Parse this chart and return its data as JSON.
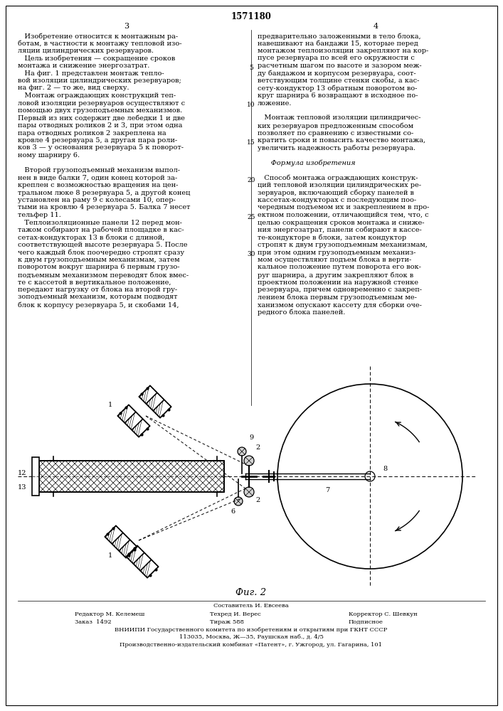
{
  "title": "1571180",
  "page_left": "3",
  "page_right": "4",
  "background": "#ffffff",
  "text_color": "#000000",
  "line_numbers": [
    "5",
    "10",
    "15",
    "20",
    "25",
    "30"
  ],
  "col1_paragraphs": [
    "   Изобретение относится к монтажным работам, в частности к монтажу тепловой изо-ляции цилиндрических резервуаров.\n   Цель изобретения — сокращение сроков монтажа и снижение энергозатрат.\n   На фиг. 1 представлен монтаж тепловой изоляции цилиндрических резервуаров;\nна фиг. 2 — то же, вид сверху.\n   Монтаж ограждающих конструкций тепловой изоляции резервуаров осуществляют с помощью двух грузоподъемных механизмов. Первый из них содержит две лебедки 1 и две пары отводных роликов 2 и 3, при этом одна пара отводных роликов 2 закреплена на кровле 4 резервуара 5, а другая пара роли-ков 3 — у основания резервуара 5 к пово-ротному шарниру 6.\n\n   Второй грузоподъемный механизм выпол-нен в виде балки 7, один конец которой за-креплен с возможностью вращения на цен-тральном люке 8 резервуара 5, а другой конец установлен на раму 9 с колесами 10, опер-тыми на кровлю 4 резервуара 5. Балка 7 несет тельфер 11.\n   Теплоизоляционные панели 12 перед мон-тажом собирают на рабочей площадке в кас-сетах-кондукторах 13 в блоки с длиной, соответствующей высоте резервуара 5. После чего каждый блок поочередно стропят сразу к двум грузоподъемным механизмам, затем поворотом вокруг шарнира 6 первым грузо-подъемным механизмом переводят блок вмес-те с кассетой в вертикальное положение, передают нагрузку от блока на второй гру-зоподъемный механизм, которым подводят блок к корпусу резервуара 5, и скобами 14,"
  ],
  "col1_lines": [
    "   Изобретение относится к монтажным ра-",
    "ботам, в частности к монтажу тепловой изо-",
    "ляции цилиндрических резервуаров.",
    "   Цель изобретения — сокращение сроков",
    "монтажа и снижение энергозатрат.",
    "   На фиг. 1 представлен монтаж тепло-",
    "вой изоляции цилиндрических резервуаров;",
    "на фиг. 2 — то же, вид сверху.",
    "   Монтаж ограждающих конструкций теп-",
    "ловой изоляции резервуаров осуществляют с",
    "помощью двух грузоподъемных механизмов.",
    "Первый из них содержит две лебедки 1 и две",
    "пары отводных роликов 2 и 3, при этом одна",
    "пара отводных роликов 2 закреплена на",
    "кровле 4 резервуара 5, а другая пара роли-",
    "ков 3 — у основания резервуара 5 к поворот-",
    "ному шарниру 6.",
    "",
    "   Второй грузоподъемный механизм выпол-",
    "нен в виде балки 7, один конец которой за-",
    "креплен с возможностью вращения на цен-",
    "тральном люке 8 резервуара 5, а другой конец",
    "установлен на раму 9 с колесами 10, опер-",
    "тыми на кровлю 4 резервуара 5. Балка 7 несет",
    "тельфер 11.",
    "   Теплоизоляционные панели 12 перед мон-",
    "тажом собирают на рабочей площадке в кас-",
    "сетах-кондукторах 13 в блоки с длиной,",
    "соответствующей высоте резервуара 5. После",
    "чего каждый блок поочередно стропят сразу",
    "к двум грузоподъемным механизмам, затем",
    "поворотом вокруг шарнира 6 первым грузо-",
    "подъемным механизмом переводят блок вмес-",
    "те с кассетой в вертикальное положение,",
    "передают нагрузку от блока на второй гру-",
    "зоподъемный механизм, которым подводят",
    "блок к корпусу резервуара 5, и скобами 14,"
  ],
  "col2_lines": [
    "предварительно заложенными в тело блока,",
    "навешивают на бандажи 15, которые перед",
    "монтажом теплоизоляции закрепляют на кор-",
    "пусе резервуара по всей его окружности с",
    "расчетным шагом по высоте и зазором меж-",
    "ду бандажом и корпусом резервуара, соот-",
    "ветствующим толщине стенки скобы, а кас-",
    "сету-кондуктор 13 обратным поворотом во-",
    "круг шарнира 6 возвращают в исходное по-",
    "ложение.",
    "",
    "   Монтаж тепловой изоляции цилиндричес-",
    "ких резервуаров предложенным способом",
    "позволяет по сравнению с известными со-",
    "кратить сроки и повысить качество монтажа,",
    "увеличить надежность работы резервуара.",
    "",
    "      Формула изобретения",
    "",
    "   Способ монтажа ограждающих конструк-",
    "ций тепловой изоляции цилиндрических ре-",
    "зервуаров, включающий сборку панелей в",
    "кассетах-кондукторах с последующим поо-",
    "чередным подъемом их и закреплением в про-",
    "ектном положении, отличающийся тем, что, с",
    "целью сокращения сроков монтажа и сниже-",
    "ния энергозатрат, панели собирают в кассе-",
    "те-кондукторе в блоки, затем кондуктор",
    "стропят к двум грузоподъемным механизмам,",
    "при этом одним грузоподъемным механиз-",
    "мом осуществляют подъем блока в верти-",
    "кальное положение путем поворота его вок-",
    "руг шарнира, а другим закрепляют блок в",
    "проектном положении на наружной стенке",
    "резервуара, причем одновременно с закреп-",
    "лением блока первым грузоподъемным ме-",
    "ханизмом опускают кассету для сборки оче-",
    "редного блока панелей."
  ],
  "fig_caption": "Фиг. 2",
  "footer_composer": "Составитель И. Евсеева",
  "footer_editor": "Редактор М. Келемеш",
  "footer_tech": "Техред И. Верес",
  "footer_corr": "Корректор С. Шевкун",
  "footer_order": "Заказ  1492",
  "footer_print": "Тираж 588",
  "footer_sub": "Подписное",
  "footer_org": "ВНИИПИ Государственного комитета по изобретениям и открытиям при ГКНТ СССР",
  "footer_addr1": "113035, Москва, Ж—35, Раушская наб., д. 4/5",
  "footer_addr2": "Производственно-издательский комбинат «Патент», г. Ужгород, ул. Гагарина, 101"
}
